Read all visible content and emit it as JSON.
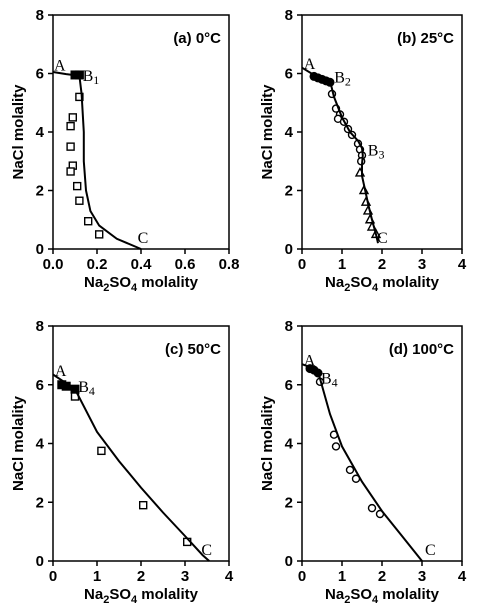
{
  "chart_data": [
    {
      "type": "scatter",
      "title": "(a) 0°C",
      "xlabel": "Na2SO4  molality",
      "ylabel": "NaCl  molality",
      "xlim": [
        0,
        0.8
      ],
      "ylim": [
        0,
        8
      ],
      "xticks": [
        "0.0",
        "0.2",
        "0.4",
        "0.6",
        "0.8"
      ],
      "yticks": [
        "0",
        "2",
        "4",
        "6",
        "8"
      ],
      "annotations": [
        {
          "text": "A",
          "x": 0.0,
          "y": 6.1
        },
        {
          "text": "B",
          "sub": "1",
          "x": 0.13,
          "y": 5.75
        },
        {
          "text": "C",
          "x": 0.38,
          "y": 0.2
        }
      ],
      "series": [
        {
          "marker": "filled-square",
          "values": [
            [
              0.1,
              5.95
            ],
            [
              0.12,
              5.95
            ]
          ]
        },
        {
          "marker": "open-square",
          "values": [
            [
              0.12,
              5.2
            ],
            [
              0.09,
              4.5
            ],
            [
              0.08,
              4.2
            ],
            [
              0.08,
              3.5
            ],
            [
              0.09,
              2.85
            ],
            [
              0.08,
              2.65
            ],
            [
              0.11,
              2.15
            ],
            [
              0.12,
              1.65
            ],
            [
              0.16,
              0.95
            ],
            [
              0.21,
              0.5
            ]
          ]
        },
        {
          "marker": "line",
          "values": [
            [
              0.0,
              6.05
            ],
            [
              0.06,
              5.98
            ],
            [
              0.12,
              5.92
            ],
            [
              0.13,
              5.3
            ],
            [
              0.14,
              4.0
            ],
            [
              0.14,
              3.0
            ],
            [
              0.15,
              2.0
            ],
            [
              0.17,
              1.3
            ],
            [
              0.21,
              0.8
            ],
            [
              0.29,
              0.35
            ],
            [
              0.4,
              0.0
            ]
          ]
        }
      ]
    },
    {
      "type": "scatter",
      "title": "(b) 25°C",
      "xlabel": "Na2SO4  molality",
      "ylabel": "NaCl  molality",
      "xlim": [
        0,
        4
      ],
      "ylim": [
        0,
        8
      ],
      "xticks": [
        "0",
        "1",
        "2",
        "3",
        "4"
      ],
      "yticks": [
        "0",
        "2",
        "4",
        "6",
        "8"
      ],
      "annotations": [
        {
          "text": "A",
          "x": 0.02,
          "y": 6.15
        },
        {
          "text": "B",
          "sub": "2",
          "x": 0.78,
          "y": 5.7
        },
        {
          "text": "B",
          "sub": "3",
          "x": 1.62,
          "y": 3.2
        },
        {
          "text": "C",
          "x": 1.85,
          "y": 0.2
        }
      ],
      "series": [
        {
          "marker": "filled-circle",
          "values": [
            [
              0.3,
              5.9
            ],
            [
              0.4,
              5.85
            ],
            [
              0.5,
              5.8
            ],
            [
              0.6,
              5.75
            ],
            [
              0.7,
              5.7
            ]
          ]
        },
        {
          "marker": "open-circle",
          "values": [
            [
              0.75,
              5.3
            ],
            [
              0.85,
              4.8
            ],
            [
              0.95,
              4.6
            ],
            [
              0.9,
              4.45
            ],
            [
              1.05,
              4.35
            ],
            [
              1.15,
              4.1
            ],
            [
              1.25,
              3.9
            ],
            [
              1.4,
              3.6
            ],
            [
              1.45,
              3.4
            ],
            [
              1.5,
              3.2
            ],
            [
              1.48,
              3.0
            ]
          ]
        },
        {
          "marker": "open-triangle",
          "values": [
            [
              1.45,
              2.6
            ],
            [
              1.55,
              2.0
            ],
            [
              1.6,
              1.6
            ],
            [
              1.65,
              1.3
            ],
            [
              1.7,
              1.0
            ],
            [
              1.75,
              0.75
            ],
            [
              1.85,
              0.5
            ]
          ]
        },
        {
          "marker": "line",
          "values": [
            [
              0.0,
              6.2
            ],
            [
              0.3,
              5.95
            ],
            [
              0.7,
              5.75
            ],
            [
              0.8,
              5.2
            ],
            [
              1.0,
              4.5
            ],
            [
              1.2,
              4.0
            ],
            [
              1.4,
              3.7
            ],
            [
              1.5,
              3.45
            ],
            [
              1.52,
              3.2
            ],
            [
              1.5,
              2.9
            ],
            [
              1.5,
              2.5
            ],
            [
              1.58,
              2.0
            ],
            [
              1.66,
              1.5
            ],
            [
              1.75,
              1.0
            ],
            [
              1.85,
              0.5
            ],
            [
              1.9,
              0.2
            ]
          ]
        }
      ]
    },
    {
      "type": "scatter",
      "title": "(c) 50°C",
      "xlabel": "Na2SO4  molality",
      "ylabel": "NaCl  molality",
      "xlim": [
        0,
        4
      ],
      "ylim": [
        0,
        8
      ],
      "xticks": [
        "0",
        "1",
        "2",
        "3",
        "4"
      ],
      "yticks": [
        "0",
        "2",
        "4",
        "6",
        "8"
      ],
      "annotations": [
        {
          "text": "A",
          "x": 0.02,
          "y": 6.3
        },
        {
          "text": "B",
          "sub": "4",
          "x": 0.55,
          "y": 5.75
        },
        {
          "text": "C",
          "x": 3.35,
          "y": 0.2
        }
      ],
      "series": [
        {
          "marker": "filled-square",
          "values": [
            [
              0.2,
              6.0
            ],
            [
              0.3,
              5.95
            ],
            [
              0.5,
              5.85
            ]
          ]
        },
        {
          "marker": "open-square",
          "values": [
            [
              0.5,
              5.6
            ],
            [
              1.1,
              3.75
            ],
            [
              2.05,
              1.9
            ],
            [
              3.05,
              0.65
            ]
          ]
        },
        {
          "marker": "line",
          "values": [
            [
              0.0,
              6.35
            ],
            [
              0.25,
              6.1
            ],
            [
              0.5,
              5.85
            ],
            [
              1.0,
              4.4
            ],
            [
              1.5,
              3.4
            ],
            [
              2.0,
              2.5
            ],
            [
              2.5,
              1.65
            ],
            [
              3.0,
              0.85
            ],
            [
              3.4,
              0.2
            ],
            [
              3.55,
              0.0
            ]
          ]
        }
      ]
    },
    {
      "type": "scatter",
      "title": "(d) 100°C",
      "xlabel": "Na2SO4  molality",
      "ylabel": "NaCl  molality",
      "xlim": [
        0,
        4
      ],
      "ylim": [
        0,
        8
      ],
      "xticks": [
        "0",
        "1",
        "2",
        "3",
        "4"
      ],
      "yticks": [
        "0",
        "2",
        "4",
        "6",
        "8"
      ],
      "annotations": [
        {
          "text": "A",
          "x": 0.02,
          "y": 6.65
        },
        {
          "text": "B",
          "sub": "4",
          "x": 0.45,
          "y": 6.05
        },
        {
          "text": "C",
          "x": 3.05,
          "y": 0.2
        }
      ],
      "series": [
        {
          "marker": "filled-circle",
          "values": [
            [
              0.2,
              6.55
            ],
            [
              0.3,
              6.5
            ],
            [
              0.4,
              6.4
            ]
          ]
        },
        {
          "marker": "open-circle",
          "values": [
            [
              0.45,
              6.1
            ],
            [
              0.8,
              4.3
            ],
            [
              0.85,
              3.9
            ],
            [
              1.2,
              3.1
            ],
            [
              1.35,
              2.8
            ],
            [
              1.75,
              1.8
            ],
            [
              1.95,
              1.6
            ]
          ]
        },
        {
          "marker": "line",
          "values": [
            [
              0.0,
              6.7
            ],
            [
              0.2,
              6.6
            ],
            [
              0.4,
              6.45
            ],
            [
              0.7,
              5.0
            ],
            [
              1.0,
              3.9
            ],
            [
              1.5,
              2.7
            ],
            [
              2.0,
              1.7
            ],
            [
              2.5,
              0.85
            ],
            [
              3.0,
              0.0
            ]
          ]
        }
      ]
    }
  ]
}
